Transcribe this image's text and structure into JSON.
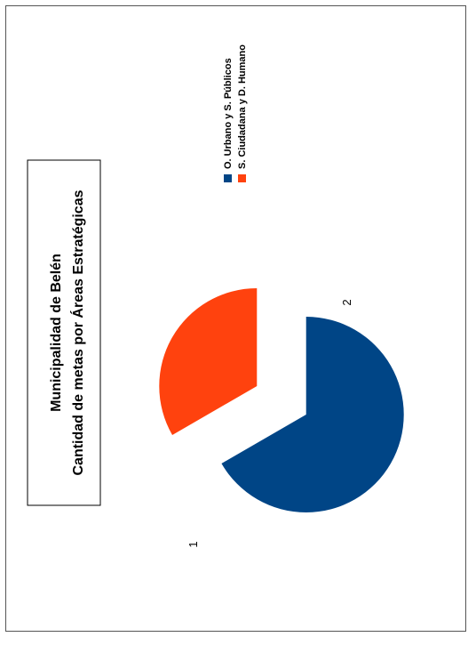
{
  "chart_data": {
    "type": "pie",
    "title": "Municipalidad de Belén",
    "subtitle": "Cantidad de metas por Áreas Estratégicas",
    "categories": [
      "O. Urbano y S. Públicos",
      "S. Ciudadana y  D. Humano"
    ],
    "values": [
      2,
      1
    ],
    "data_labels": [
      "2",
      "1"
    ],
    "colors": [
      "#004586",
      "#ff420e"
    ],
    "legend_position": "right",
    "orientation": "rotated-90-ccw",
    "exploded": true
  }
}
